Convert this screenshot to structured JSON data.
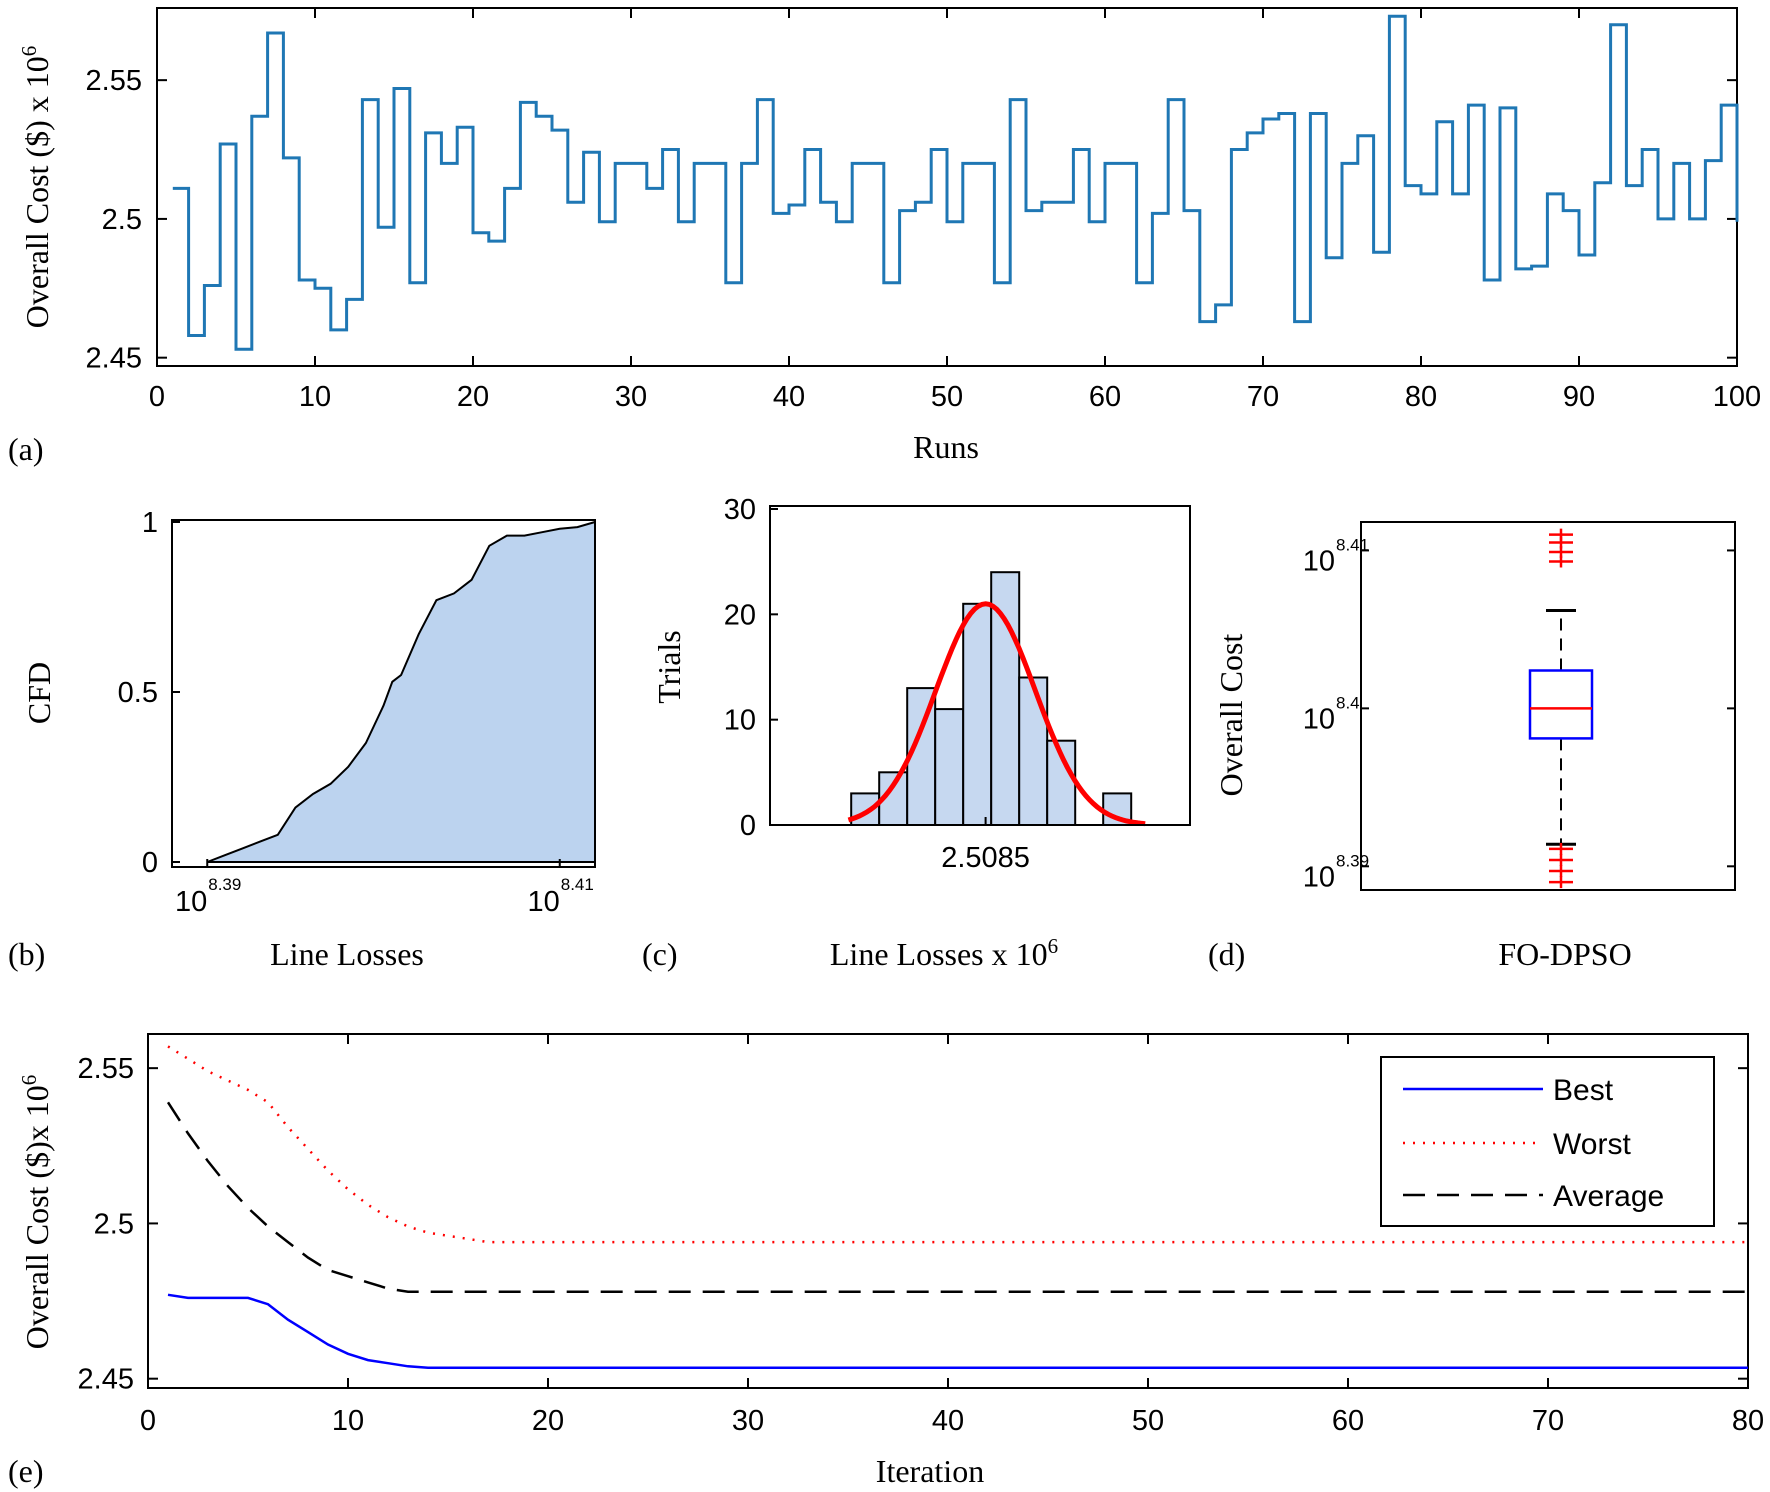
{
  "colors": {
    "series_a": "#1f77b4",
    "ecdf_fill": "#bcd3ef",
    "hist_fill": "#c6d8f0",
    "fit": "#ff0000",
    "box": "#0000ff",
    "median": "#ff0000",
    "outlier": "#ff0000",
    "best": "#0000ff",
    "worst": "#ff0000",
    "average": "#000000"
  },
  "chart_data": [
    {
      "id": "a",
      "type": "line",
      "panel_label": "(a)",
      "xlabel": "Runs",
      "ylabel_text": "Overall Cost ($) x 10",
      "ylabel_exp": "6",
      "xlim": [
        0,
        100
      ],
      "ylim": [
        2.447,
        2.576
      ],
      "xticks": [
        0,
        10,
        20,
        30,
        40,
        50,
        60,
        70,
        80,
        90,
        100
      ],
      "xticklabels": [
        "0",
        "10",
        "20",
        "30",
        "40",
        "50",
        "60",
        "70",
        "80",
        "90",
        "100"
      ],
      "yticks": [
        2.45,
        2.5,
        2.55
      ],
      "yticklabels": [
        "2.45",
        "2.5",
        "2.55"
      ],
      "x": [
        1,
        2,
        3,
        4,
        5,
        6,
        7,
        8,
        9,
        10,
        11,
        12,
        13,
        14,
        15,
        16,
        17,
        18,
        19,
        20,
        21,
        22,
        23,
        24,
        25,
        26,
        27,
        28,
        29,
        30,
        31,
        32,
        33,
        34,
        35,
        36,
        37,
        38,
        39,
        40,
        41,
        42,
        43,
        44,
        45,
        46,
        47,
        48,
        49,
        50,
        51,
        52,
        53,
        54,
        55,
        56,
        57,
        58,
        59,
        60,
        61,
        62,
        63,
        64,
        65,
        66,
        67,
        68,
        69,
        70,
        71,
        72,
        73,
        74,
        75,
        76,
        77,
        78,
        79,
        80,
        81,
        82,
        83,
        84,
        85,
        86,
        87,
        88,
        89,
        90,
        91,
        92,
        93,
        94,
        95,
        96,
        97,
        98,
        99,
        100
      ],
      "values": [
        2.511,
        2.458,
        2.476,
        2.527,
        2.453,
        2.537,
        2.567,
        2.522,
        2.478,
        2.475,
        2.46,
        2.471,
        2.543,
        2.497,
        2.547,
        2.477,
        2.531,
        2.52,
        2.533,
        2.495,
        2.492,
        2.511,
        2.542,
        2.537,
        2.532,
        2.506,
        2.524,
        2.499,
        2.52,
        2.52,
        2.511,
        2.525,
        2.499,
        2.52,
        2.52,
        2.477,
        2.52,
        2.543,
        2.502,
        2.505,
        2.525,
        2.506,
        2.499,
        2.52,
        2.52,
        2.477,
        2.503,
        2.506,
        2.525,
        2.499,
        2.52,
        2.52,
        2.477,
        2.543,
        2.503,
        2.506,
        2.506,
        2.525,
        2.499,
        2.52,
        2.52,
        2.477,
        2.502,
        2.543,
        2.503,
        2.463,
        2.469,
        2.525,
        2.531,
        2.536,
        2.538,
        2.463,
        2.538,
        2.486,
        2.52,
        2.53,
        2.488,
        2.573,
        2.512,
        2.509,
        2.535,
        2.509,
        2.541,
        2.478,
        2.54,
        2.482,
        2.483,
        2.509,
        2.503,
        2.487,
        2.513,
        2.57,
        2.512,
        2.525,
        2.5,
        2.52,
        2.5,
        2.521,
        2.541,
        2.499
      ]
    },
    {
      "id": "b",
      "type": "area",
      "panel_label": "(b)",
      "xlabel": "Line Losses",
      "ylabel": "CFD",
      "xlim": [
        8.388,
        8.412
      ],
      "ylim": [
        0,
        1
      ],
      "xticks": [
        8.39,
        8.41
      ],
      "xtick_base": [
        "10",
        "10"
      ],
      "xtick_exp": [
        "8.39",
        "8.41"
      ],
      "yticks": [
        0,
        0.5,
        1
      ],
      "yticklabels": [
        "0",
        "0.5",
        "1"
      ],
      "x": [
        8.39,
        8.391,
        8.392,
        8.393,
        8.394,
        8.395,
        8.396,
        8.397,
        8.398,
        8.399,
        8.4,
        8.4005,
        8.401,
        8.402,
        8.403,
        8.404,
        8.405,
        8.406,
        8.407,
        8.408,
        8.409,
        8.41,
        8.411,
        8.412
      ],
      "values": [
        0,
        0.02,
        0.04,
        0.06,
        0.08,
        0.16,
        0.2,
        0.23,
        0.28,
        0.35,
        0.46,
        0.53,
        0.55,
        0.67,
        0.77,
        0.79,
        0.83,
        0.93,
        0.96,
        0.96,
        0.97,
        0.98,
        0.985,
        1
      ]
    },
    {
      "id": "c",
      "type": "bar",
      "panel_label": "(c)",
      "xlabel_text": "Line Losses x 10",
      "xlabel_exp": "6",
      "ylabel": "Trials",
      "xlim": [
        2.47,
        2.545
      ],
      "ylim": [
        0,
        30
      ],
      "xticks": [
        2.5085
      ],
      "xticklabels": [
        "2.5085"
      ],
      "yticks": [
        0,
        10,
        20,
        30
      ],
      "yticklabels": [
        "0",
        "10",
        "20",
        "30"
      ],
      "bin_edges": [
        2.4845,
        2.4895,
        2.4945,
        2.4995,
        2.5045,
        2.5095,
        2.5145,
        2.5195,
        2.5245,
        2.5295,
        2.5345
      ],
      "values": [
        3,
        5,
        13,
        11,
        21,
        24,
        14,
        8,
        0,
        3
      ],
      "fit_curve": {
        "mean": 2.5085,
        "sd": 0.0089,
        "peak": 21,
        "x_from": 2.484,
        "x_to": 2.537
      }
    },
    {
      "id": "d",
      "type": "box",
      "panel_label": "(d)",
      "xlabel": "FO-DPSO",
      "ylabel": "Overall Cost",
      "ylim": [
        8.3885,
        8.4118
      ],
      "yticks": [
        8.39,
        8.4,
        8.41
      ],
      "ytick_base": [
        "10",
        "10",
        "10"
      ],
      "ytick_exp": [
        "8.39",
        "8.4",
        "8.41"
      ],
      "whisker_low": 8.3914,
      "q1": 8.3981,
      "median": 8.4,
      "q3": 8.4024,
      "whisker_high": 8.4062,
      "outliers": [
        8.389,
        8.3897,
        8.3904,
        8.3911,
        8.4093,
        8.4099,
        8.4105,
        8.411
      ]
    },
    {
      "id": "e",
      "type": "line",
      "panel_label": "(e)",
      "xlabel": "Iteration",
      "ylabel_text": "Overall Cost ($)x 10",
      "ylabel_exp": "6",
      "xlim": [
        0,
        80
      ],
      "ylim": [
        2.447,
        2.561
      ],
      "xticks": [
        0,
        10,
        20,
        30,
        40,
        50,
        60,
        70,
        80
      ],
      "xticklabels": [
        "0",
        "10",
        "20",
        "30",
        "40",
        "50",
        "60",
        "70",
        "80"
      ],
      "yticks": [
        2.45,
        2.5,
        2.55
      ],
      "yticklabels": [
        "2.45",
        "2.5",
        "2.55"
      ],
      "legend": {
        "position": "top-right",
        "entries": [
          "Best",
          "Worst",
          "Average"
        ]
      },
      "series": [
        {
          "name": "Best",
          "style": "solid",
          "x": [
            1,
            2,
            3,
            4,
            5,
            6,
            7,
            8,
            9,
            10,
            11,
            12,
            13,
            14,
            15,
            20,
            30,
            40,
            50,
            60,
            70,
            80
          ],
          "values": [
            2.477,
            2.476,
            2.476,
            2.476,
            2.476,
            2.474,
            2.469,
            2.465,
            2.461,
            2.458,
            2.456,
            2.455,
            2.454,
            2.4535,
            2.4535,
            2.4535,
            2.4535,
            2.4535,
            2.4535,
            2.4535,
            2.4535,
            2.4535
          ]
        },
        {
          "name": "Worst",
          "style": "dotted",
          "x": [
            1,
            2,
            3,
            4,
            5,
            6,
            7,
            8,
            9,
            10,
            11,
            12,
            13,
            14,
            15,
            16,
            17,
            20,
            30,
            40,
            50,
            60,
            70,
            80
          ],
          "values": [
            2.557,
            2.553,
            2.549,
            2.546,
            2.543,
            2.539,
            2.531,
            2.524,
            2.517,
            2.511,
            2.506,
            2.502,
            2.499,
            2.497,
            2.496,
            2.495,
            2.494,
            2.494,
            2.494,
            2.494,
            2.494,
            2.494,
            2.494,
            2.494
          ]
        },
        {
          "name": "Average",
          "style": "dashed",
          "x": [
            1,
            2,
            3,
            4,
            5,
            6,
            7,
            8,
            9,
            10,
            11,
            12,
            13,
            14,
            15,
            20,
            30,
            40,
            50,
            60,
            70,
            80
          ],
          "values": [
            2.539,
            2.529,
            2.52,
            2.512,
            2.505,
            2.499,
            2.494,
            2.489,
            2.485,
            2.483,
            2.481,
            2.479,
            2.478,
            2.478,
            2.478,
            2.478,
            2.478,
            2.478,
            2.478,
            2.478,
            2.478,
            2.478
          ]
        }
      ]
    }
  ]
}
